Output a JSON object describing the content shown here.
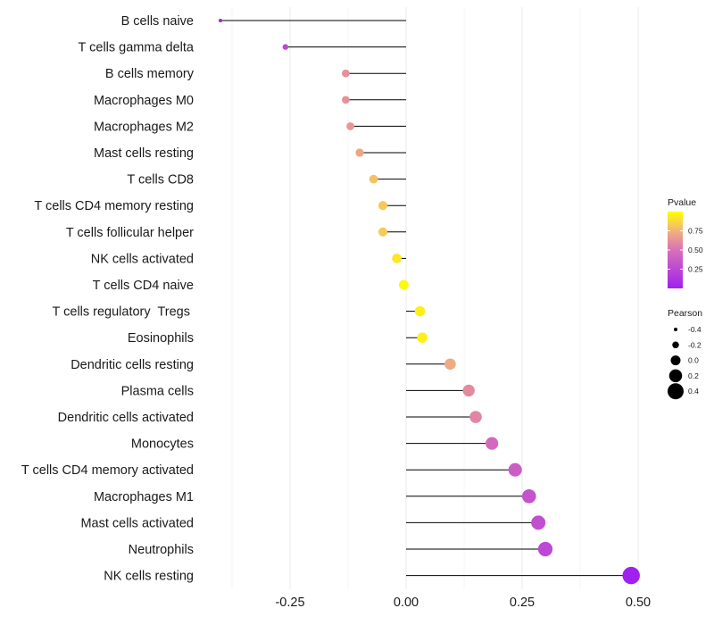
{
  "chart_data": {
    "type": "lollipop",
    "title": "",
    "xlabel": "",
    "ylabel": "",
    "xlim": [
      -0.4,
      0.5
    ],
    "x_ticks": [
      -0.25,
      0.0,
      0.25,
      0.5
    ],
    "x_tick_labels": [
      "-0.25",
      "0.00",
      "0.25",
      "0.50"
    ],
    "grid": true,
    "categories": [
      "B cells naive",
      "T cells gamma delta",
      "B cells memory",
      "Macrophages M0",
      "Macrophages M2",
      "Mast cells resting",
      "T cells CD8",
      "T cells CD4 memory resting",
      "T cells follicular helper",
      "NK cells activated",
      "T cells CD4 naive",
      "T cells regulatory  Tregs ",
      "Eosinophils",
      "Dendritic cells resting",
      "Plasma cells",
      "Dendritic cells activated",
      "Monocytes",
      "T cells CD4 memory activated",
      "Macrophages M1",
      "Mast cells activated",
      "Neutrophils",
      "NK cells resting"
    ],
    "pearson": [
      -0.4,
      -0.26,
      -0.13,
      -0.13,
      -0.12,
      -0.1,
      -0.07,
      -0.05,
      -0.05,
      -0.02,
      -0.005,
      0.03,
      0.035,
      0.095,
      0.135,
      0.15,
      0.185,
      0.235,
      0.265,
      0.285,
      0.3,
      0.485
    ],
    "pvalue": [
      0.0,
      0.25,
      0.62,
      0.62,
      0.65,
      0.7,
      0.8,
      0.82,
      0.83,
      0.92,
      0.98,
      0.95,
      0.95,
      0.72,
      0.6,
      0.58,
      0.45,
      0.38,
      0.32,
      0.3,
      0.25,
      0.0
    ],
    "legend_color": {
      "title": "Pvalue",
      "ticks": [
        0.25,
        0.5,
        0.75
      ],
      "tick_labels": [
        "0.25",
        "0.50",
        "0.75"
      ],
      "range": [
        0.0,
        1.0
      ],
      "low_color": "#A020F0",
      "high_color": "#FFFF00",
      "position": "right"
    },
    "legend_size": {
      "title": "Pearson",
      "values": [
        -0.4,
        -0.2,
        0.0,
        0.2,
        0.4
      ],
      "labels": [
        "-0.4",
        "-0.2",
        "0.0",
        "0.2",
        "0.4"
      ],
      "position": "right"
    }
  }
}
